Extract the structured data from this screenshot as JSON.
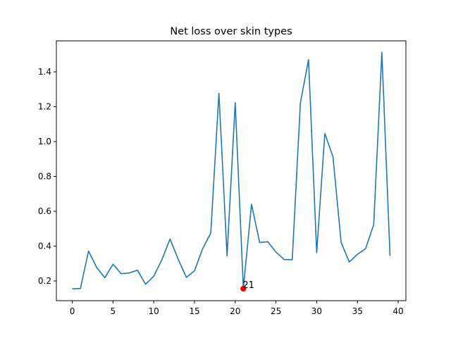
{
  "chart_data": {
    "type": "line",
    "title": "Net loss over skin types",
    "xlabel": "",
    "ylabel": "",
    "xlim": [
      -1.95,
      40.95
    ],
    "ylim": [
      0.087,
      1.578
    ],
    "xticks": [
      0,
      5,
      10,
      15,
      20,
      25,
      30,
      35,
      40
    ],
    "yticks": [
      0.2,
      0.4,
      0.6,
      0.8,
      1.0,
      1.2,
      1.4
    ],
    "ytick_labels": [
      "0.2",
      "0.4",
      "0.6",
      "0.8",
      "1.0",
      "1.2",
      "1.4"
    ],
    "grid": false,
    "series": [
      {
        "name": "",
        "color": "#1f77b4",
        "x": [
          0,
          1,
          2,
          3,
          4,
          5,
          6,
          7,
          8,
          9,
          10,
          11,
          12,
          13,
          14,
          15,
          16,
          17,
          18,
          19,
          20,
          21,
          22,
          23,
          24,
          25,
          26,
          27,
          28,
          29,
          30,
          31,
          32,
          33,
          34,
          35,
          36,
          37,
          38,
          39
        ],
        "y": [
          0.155,
          0.157,
          0.372,
          0.277,
          0.219,
          0.296,
          0.242,
          0.246,
          0.262,
          0.181,
          0.227,
          0.322,
          0.441,
          0.325,
          0.221,
          0.258,
          0.385,
          0.475,
          1.278,
          0.344,
          1.223,
          0.156,
          0.64,
          0.421,
          0.425,
          0.366,
          0.323,
          0.322,
          1.222,
          1.47,
          0.362,
          1.046,
          0.913,
          0.421,
          0.309,
          0.353,
          0.385,
          0.524,
          1.512,
          0.344
        ]
      }
    ],
    "highlight": {
      "x": 21,
      "y": 0.156,
      "label": "21",
      "color": "#ff0000"
    }
  }
}
